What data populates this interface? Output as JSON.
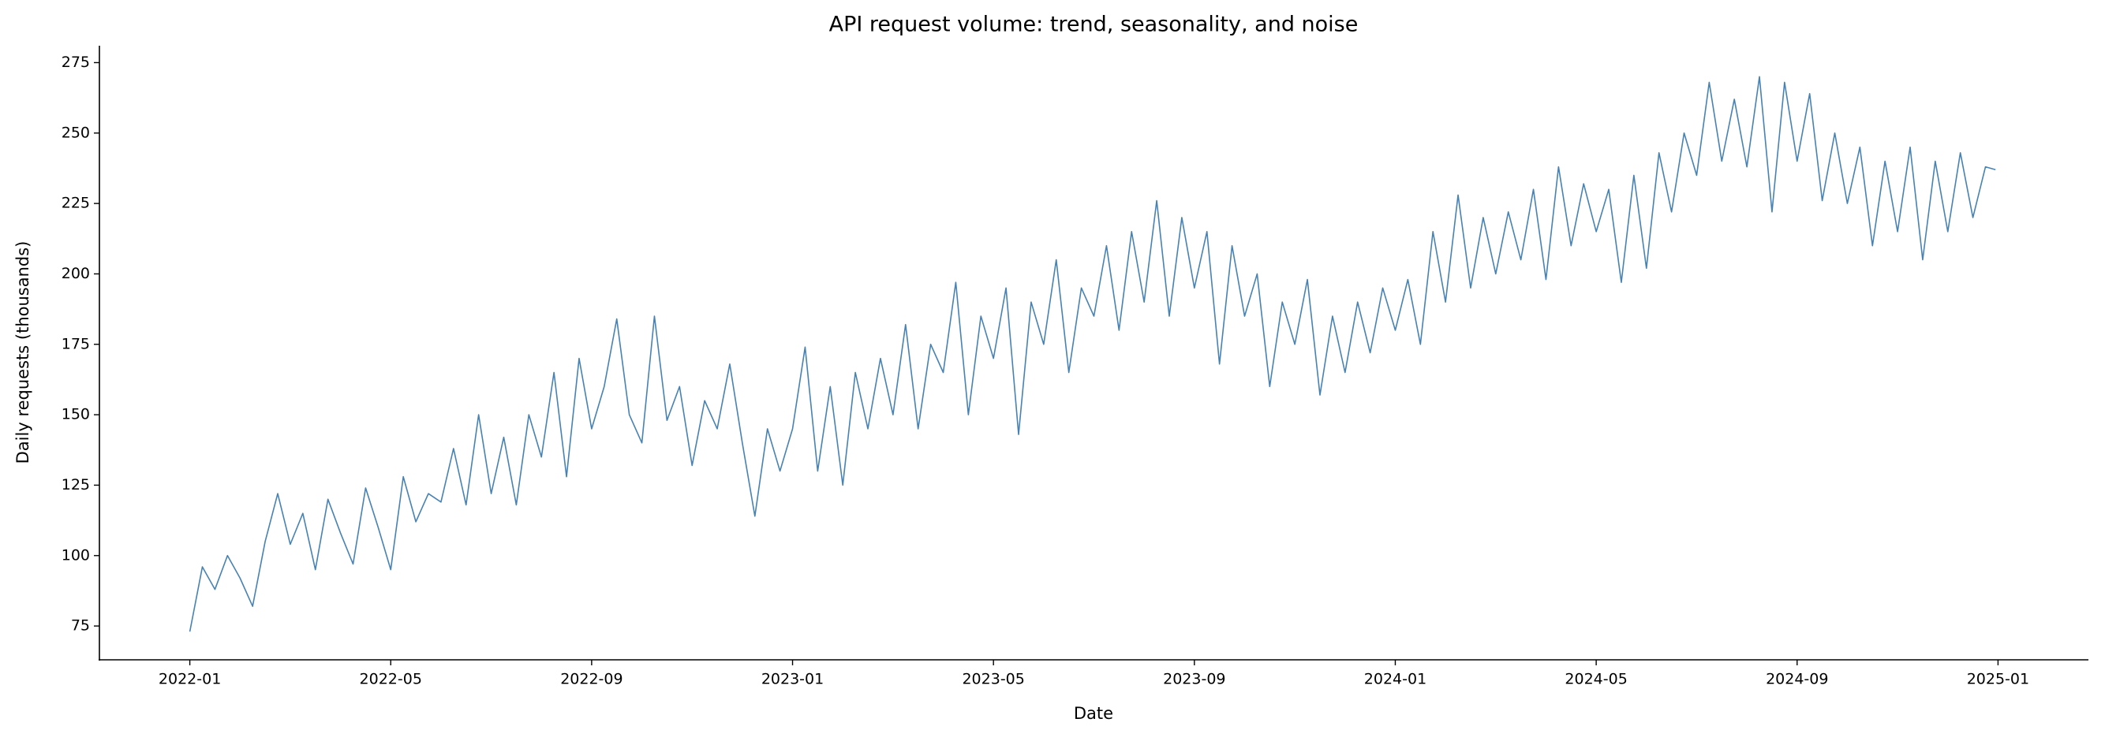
{
  "chart_data": {
    "type": "line",
    "title": "API request volume: trend, seasonality, and noise",
    "x_label": "Date",
    "y_label": "Daily requests (thousands)",
    "x": [
      0,
      0.25,
      0.5,
      0.75,
      1,
      1.25,
      1.5,
      1.75,
      2,
      2.25,
      2.5,
      2.75,
      3,
      3.25,
      3.5,
      3.75,
      4,
      4.25,
      4.5,
      4.75,
      5,
      5.25,
      5.5,
      5.75,
      6,
      6.25,
      6.5,
      6.75,
      7,
      7.25,
      7.5,
      7.75,
      8,
      8.25,
      8.5,
      8.75,
      9,
      9.25,
      9.5,
      9.75,
      10,
      10.25,
      10.5,
      10.75,
      11,
      11.25,
      11.5,
      11.75,
      12,
      12.25,
      12.5,
      12.75,
      13,
      13.25,
      13.5,
      13.75,
      14,
      14.25,
      14.5,
      14.75,
      15,
      15.25,
      15.5,
      15.75,
      16,
      16.25,
      16.5,
      16.75,
      17,
      17.25,
      17.5,
      17.75,
      18,
      18.25,
      18.5,
      18.75,
      19,
      19.25,
      19.5,
      19.75,
      20,
      20.25,
      20.5,
      20.75,
      21,
      21.25,
      21.5,
      21.75,
      22,
      22.25,
      22.5,
      22.75,
      23,
      23.25,
      23.5,
      23.75,
      24,
      24.25,
      24.5,
      24.75,
      25,
      25.25,
      25.5,
      25.75,
      26,
      26.25,
      26.5,
      26.75,
      27,
      27.25,
      27.5,
      27.75,
      28,
      28.25,
      28.5,
      28.75,
      29,
      29.25,
      29.5,
      29.75,
      30,
      30.25,
      30.5,
      30.75,
      31,
      31.25,
      31.5,
      31.75,
      32,
      32.25,
      32.5,
      32.75,
      33,
      33.25,
      33.5,
      33.75,
      34,
      34.25,
      34.5,
      34.75,
      35,
      35.25,
      35.5,
      35.75,
      35.95
    ],
    "series": [
      {
        "color": "#4682b4",
        "values": [
          73,
          96,
          88,
          100,
          92,
          82,
          105,
          122,
          104,
          115,
          95,
          120,
          108,
          97,
          124,
          110,
          95,
          128,
          112,
          122,
          119,
          138,
          118,
          150,
          122,
          142,
          118,
          150,
          135,
          165,
          128,
          170,
          145,
          160,
          184,
          150,
          140,
          185,
          148,
          160,
          132,
          155,
          145,
          168,
          140,
          114,
          145,
          130,
          145,
          174,
          130,
          160,
          125,
          165,
          145,
          170,
          150,
          182,
          145,
          175,
          165,
          197,
          150,
          185,
          170,
          195,
          143,
          190,
          175,
          205,
          165,
          195,
          185,
          210,
          180,
          215,
          190,
          226,
          185,
          220,
          195,
          215,
          168,
          210,
          185,
          200,
          160,
          190,
          175,
          198,
          157,
          185,
          165,
          190,
          172,
          195,
          180,
          198,
          175,
          215,
          190,
          228,
          195,
          220,
          200,
          222,
          205,
          230,
          198,
          238,
          210,
          232,
          215,
          230,
          197,
          235,
          202,
          243,
          222,
          250,
          235,
          268,
          240,
          262,
          238,
          270,
          222,
          268,
          240,
          264,
          226,
          250,
          225,
          245,
          210,
          240,
          215,
          245,
          205,
          240,
          215,
          243,
          220,
          238,
          237
        ]
      }
    ],
    "xlim": [
      -1.8,
      37.8
    ],
    "xticks": [
      {
        "value": 0,
        "label": "2022-01"
      },
      {
        "value": 4,
        "label": "2022-05"
      },
      {
        "value": 8,
        "label": "2022-09"
      },
      {
        "value": 12,
        "label": "2023-01"
      },
      {
        "value": 16,
        "label": "2023-05"
      },
      {
        "value": 20,
        "label": "2023-09"
      },
      {
        "value": 24,
        "label": "2024-01"
      },
      {
        "value": 28,
        "label": "2024-05"
      },
      {
        "value": 32,
        "label": "2024-09"
      },
      {
        "value": 36,
        "label": "2025-01"
      }
    ],
    "ylim": [
      63,
      281
    ],
    "yticks": [
      75,
      100,
      125,
      150,
      175,
      200,
      225,
      250,
      275
    ],
    "grid": false
  }
}
